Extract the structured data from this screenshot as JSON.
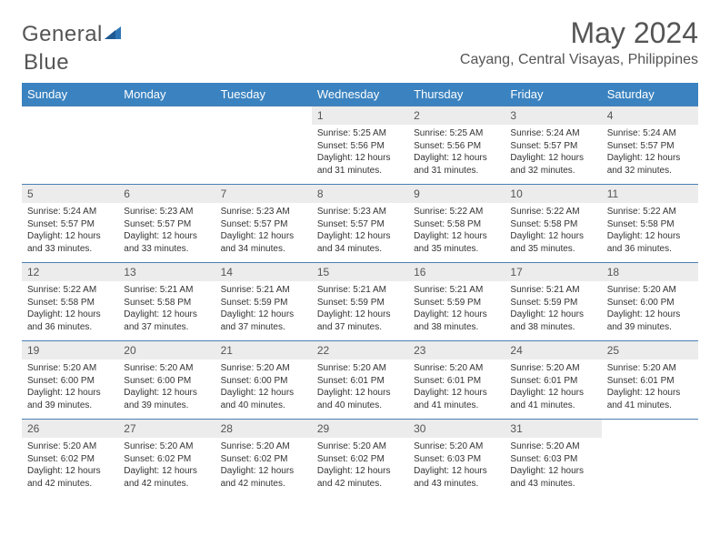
{
  "brand": {
    "part1": "General",
    "part2": "Blue"
  },
  "title": "May 2024",
  "location": "Cayang, Central Visayas, Philippines",
  "colors": {
    "header_bg": "#3b83c0",
    "header_text": "#ffffff",
    "daynum_bg": "#ececec",
    "text": "#555555",
    "body_text": "#333333",
    "row_border": "#4a7fb5",
    "logo_blue": "#2e75b6"
  },
  "day_headers": [
    "Sunday",
    "Monday",
    "Tuesday",
    "Wednesday",
    "Thursday",
    "Friday",
    "Saturday"
  ],
  "weeks": [
    [
      null,
      null,
      null,
      {
        "n": "1",
        "sr": "5:25 AM",
        "ss": "5:56 PM",
        "dl": "12 hours and 31 minutes."
      },
      {
        "n": "2",
        "sr": "5:25 AM",
        "ss": "5:56 PM",
        "dl": "12 hours and 31 minutes."
      },
      {
        "n": "3",
        "sr": "5:24 AM",
        "ss": "5:57 PM",
        "dl": "12 hours and 32 minutes."
      },
      {
        "n": "4",
        "sr": "5:24 AM",
        "ss": "5:57 PM",
        "dl": "12 hours and 32 minutes."
      }
    ],
    [
      {
        "n": "5",
        "sr": "5:24 AM",
        "ss": "5:57 PM",
        "dl": "12 hours and 33 minutes."
      },
      {
        "n": "6",
        "sr": "5:23 AM",
        "ss": "5:57 PM",
        "dl": "12 hours and 33 minutes."
      },
      {
        "n": "7",
        "sr": "5:23 AM",
        "ss": "5:57 PM",
        "dl": "12 hours and 34 minutes."
      },
      {
        "n": "8",
        "sr": "5:23 AM",
        "ss": "5:57 PM",
        "dl": "12 hours and 34 minutes."
      },
      {
        "n": "9",
        "sr": "5:22 AM",
        "ss": "5:58 PM",
        "dl": "12 hours and 35 minutes."
      },
      {
        "n": "10",
        "sr": "5:22 AM",
        "ss": "5:58 PM",
        "dl": "12 hours and 35 minutes."
      },
      {
        "n": "11",
        "sr": "5:22 AM",
        "ss": "5:58 PM",
        "dl": "12 hours and 36 minutes."
      }
    ],
    [
      {
        "n": "12",
        "sr": "5:22 AM",
        "ss": "5:58 PM",
        "dl": "12 hours and 36 minutes."
      },
      {
        "n": "13",
        "sr": "5:21 AM",
        "ss": "5:58 PM",
        "dl": "12 hours and 37 minutes."
      },
      {
        "n": "14",
        "sr": "5:21 AM",
        "ss": "5:59 PM",
        "dl": "12 hours and 37 minutes."
      },
      {
        "n": "15",
        "sr": "5:21 AM",
        "ss": "5:59 PM",
        "dl": "12 hours and 37 minutes."
      },
      {
        "n": "16",
        "sr": "5:21 AM",
        "ss": "5:59 PM",
        "dl": "12 hours and 38 minutes."
      },
      {
        "n": "17",
        "sr": "5:21 AM",
        "ss": "5:59 PM",
        "dl": "12 hours and 38 minutes."
      },
      {
        "n": "18",
        "sr": "5:20 AM",
        "ss": "6:00 PM",
        "dl": "12 hours and 39 minutes."
      }
    ],
    [
      {
        "n": "19",
        "sr": "5:20 AM",
        "ss": "6:00 PM",
        "dl": "12 hours and 39 minutes."
      },
      {
        "n": "20",
        "sr": "5:20 AM",
        "ss": "6:00 PM",
        "dl": "12 hours and 39 minutes."
      },
      {
        "n": "21",
        "sr": "5:20 AM",
        "ss": "6:00 PM",
        "dl": "12 hours and 40 minutes."
      },
      {
        "n": "22",
        "sr": "5:20 AM",
        "ss": "6:01 PM",
        "dl": "12 hours and 40 minutes."
      },
      {
        "n": "23",
        "sr": "5:20 AM",
        "ss": "6:01 PM",
        "dl": "12 hours and 41 minutes."
      },
      {
        "n": "24",
        "sr": "5:20 AM",
        "ss": "6:01 PM",
        "dl": "12 hours and 41 minutes."
      },
      {
        "n": "25",
        "sr": "5:20 AM",
        "ss": "6:01 PM",
        "dl": "12 hours and 41 minutes."
      }
    ],
    [
      {
        "n": "26",
        "sr": "5:20 AM",
        "ss": "6:02 PM",
        "dl": "12 hours and 42 minutes."
      },
      {
        "n": "27",
        "sr": "5:20 AM",
        "ss": "6:02 PM",
        "dl": "12 hours and 42 minutes."
      },
      {
        "n": "28",
        "sr": "5:20 AM",
        "ss": "6:02 PM",
        "dl": "12 hours and 42 minutes."
      },
      {
        "n": "29",
        "sr": "5:20 AM",
        "ss": "6:02 PM",
        "dl": "12 hours and 42 minutes."
      },
      {
        "n": "30",
        "sr": "5:20 AM",
        "ss": "6:03 PM",
        "dl": "12 hours and 43 minutes."
      },
      {
        "n": "31",
        "sr": "5:20 AM",
        "ss": "6:03 PM",
        "dl": "12 hours and 43 minutes."
      },
      null
    ]
  ],
  "labels": {
    "sunrise": "Sunrise:",
    "sunset": "Sunset:",
    "daylight": "Daylight:"
  }
}
